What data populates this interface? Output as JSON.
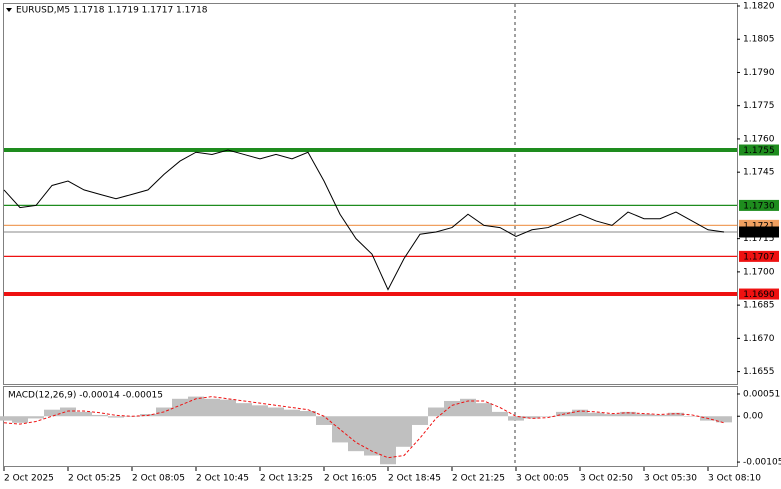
{
  "chart_data": [
    {
      "type": "line",
      "title": "EURUSD,M5  1.1718 1.1719 1.1717 1.1718",
      "categories": [
        "2 Oct 2025",
        null,
        null,
        null,
        "2 Oct 05:25",
        null,
        null,
        null,
        "2 Oct 08:05",
        null,
        null,
        null,
        "2 Oct 10:45",
        null,
        null,
        null,
        "2 Oct 13:25",
        null,
        null,
        null,
        "2 Oct 16:05",
        null,
        null,
        null,
        "2 Oct 18:45",
        null,
        null,
        null,
        "2 Oct 21:25",
        null,
        null,
        null,
        "3 Oct 00:05",
        null,
        null,
        null,
        "3 Oct 02:50",
        null,
        null,
        null,
        "3 Oct 05:30",
        null,
        null,
        null,
        "3 Oct 08:10",
        null
      ],
      "series": [
        {
          "color": "#000000",
          "values": [
            1.1737,
            1.1729,
            1.173,
            1.1739,
            1.1741,
            1.1737,
            1.1735,
            1.1733,
            1.1735,
            1.1737,
            1.1744,
            1.175,
            1.1754,
            1.1753,
            1.1755,
            1.1753,
            1.1751,
            1.1753,
            1.1751,
            1.1754,
            1.1741,
            1.1726,
            1.1715,
            1.1708,
            1.1692,
            1.1706,
            1.1717,
            1.1718,
            1.172,
            1.1726,
            1.1721,
            1.172,
            1.1716,
            1.1719,
            1.172,
            1.1723,
            1.1726,
            1.1723,
            1.1721,
            1.1727,
            1.1724,
            1.1724,
            1.1727,
            1.1723,
            1.1719,
            1.1718
          ]
        }
      ],
      "ylim": [
        1.16494,
        1.18209
      ],
      "yticks": [
        {
          "value": 1.182,
          "label": "1.1820"
        },
        1.1805,
        {
          "value": 1.179,
          "label": "1.1790"
        },
        1.1775,
        {
          "value": 1.176,
          "label": "1.1760"
        },
        1.1745,
        1.1715,
        {
          "value": 1.17,
          "label": "1.1700"
        },
        1.1685,
        {
          "value": 1.167,
          "label": "1.1670"
        },
        1.1655
      ],
      "levels": [
        {
          "value": 1.1755,
          "color": "#1e8c1e",
          "thick": true
        },
        {
          "value": {
            "value": 1.173,
            "label": "1.1730"
          },
          "color": "#1e8c1e",
          "thick": false
        },
        {
          "value": 1.1721,
          "color": "#f0a060",
          "thick": false
        },
        {
          "value": 1.1718,
          "color": "#a0a0a0",
          "thick": false,
          "label_color": "#000000"
        },
        {
          "value": 1.1707,
          "color": "#ee1111",
          "thick": false
        },
        {
          "value": {
            "value": 1.169,
            "label": "1.1690"
          },
          "color": "#ee1111",
          "thick": true
        }
      ]
    },
    {
      "type": "macd",
      "title": "MACD(12,26,9) -0.00014 -0.00015",
      "series": [
        {
          "color": "#c0c0c0",
          "values": [
            -0.0001,
            -0.00015,
            -5e-05,
            0.00015,
            0.0002,
            0.0001,
            3e-05,
            -3e-05,
            0,
            5e-05,
            0.0002,
            0.0004,
            0.00045,
            0.0004,
            0.00038,
            0.0003,
            0.00025,
            0.0002,
            0.00015,
            0.00012,
            -0.0002,
            -0.0006,
            -0.0008,
            -0.0009,
            -0.0011,
            -0.0007,
            -0.0002,
            0.0002,
            0.00035,
            0.0004,
            0.0003,
            0.0001,
            -0.0001,
            -5e-05,
            0,
            0.0001,
            0.00015,
            8e-05,
            5e-05,
            0.0001,
            5e-05,
            3e-05,
            8e-05,
            0,
            -0.0001,
            -0.00014
          ]
        },
        {
          "color": "#ee1111",
          "values": [
            -0.00015,
            -0.00018,
            -0.00012,
            0,
            0.00012,
            0.00012,
            8e-05,
            2e-05,
            0,
            2e-05,
            0.0001,
            0.00025,
            0.0004,
            0.00045,
            0.0004,
            0.00035,
            0.0003,
            0.00025,
            0.0002,
            0.00015,
            0,
            -0.0003,
            -0.0006,
            -0.0008,
            -0.00095,
            -0.0009,
            -0.0005,
            -5e-05,
            0.00025,
            0.00035,
            0.00035,
            0.0002,
            0,
            -5e-05,
            -3e-05,
            5e-05,
            0.00012,
            0.0001,
            6e-05,
            8e-05,
            6e-05,
            4e-05,
            6e-05,
            3e-05,
            -5e-05,
            -0.00015
          ]
        }
      ],
      "ylim": [
        -0.00114,
        0.00067
      ],
      "yticks": [
        0.00051,
        {
          "value": 0,
          "label": "0.00"
        },
        -0.00105
      ]
    }
  ]
}
